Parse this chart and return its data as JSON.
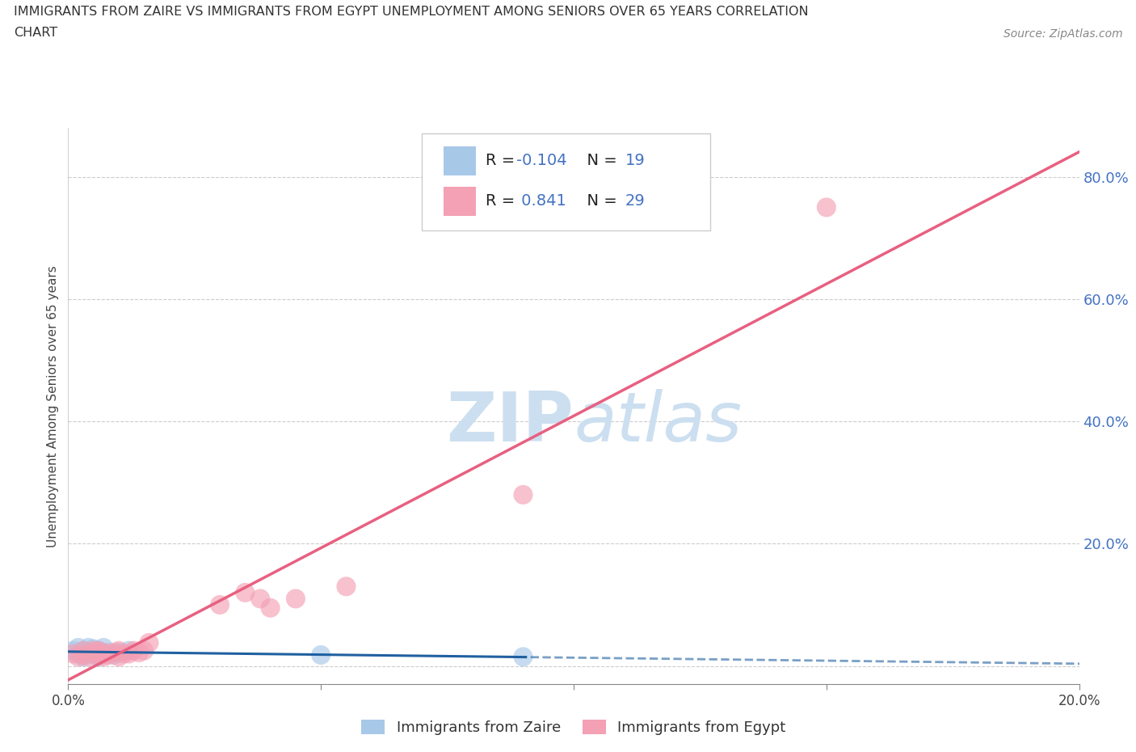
{
  "title_line1": "IMMIGRANTS FROM ZAIRE VS IMMIGRANTS FROM EGYPT UNEMPLOYMENT AMONG SENIORS OVER 65 YEARS CORRELATION",
  "title_line2": "CHART",
  "source_text": "Source: ZipAtlas.com",
  "ylabel": "Unemployment Among Seniors over 65 years",
  "xlim": [
    0.0,
    0.2
  ],
  "ylim": [
    -0.03,
    0.88
  ],
  "zaire_color": "#a8c8e8",
  "egypt_color": "#f4a0b5",
  "zaire_line_color": "#2060a0",
  "egypt_line_color": "#e86080",
  "background_color": "#ffffff",
  "watermark_color": "#ccdff0",
  "legend_r_zaire": "-0.104",
  "legend_n_zaire": "19",
  "legend_r_egypt": "0.841",
  "legend_n_egypt": "29",
  "zaire_x": [
    0.001,
    0.002,
    0.002,
    0.003,
    0.003,
    0.004,
    0.004,
    0.005,
    0.005,
    0.006,
    0.006,
    0.007,
    0.007,
    0.008,
    0.009,
    0.01,
    0.012,
    0.05,
    0.09
  ],
  "zaire_y": [
    0.025,
    0.02,
    0.03,
    0.015,
    0.025,
    0.022,
    0.03,
    0.018,
    0.028,
    0.015,
    0.025,
    0.02,
    0.03,
    0.022,
    0.018,
    0.022,
    0.025,
    0.018,
    0.015
  ],
  "egypt_x": [
    0.001,
    0.002,
    0.003,
    0.003,
    0.004,
    0.005,
    0.005,
    0.006,
    0.006,
    0.007,
    0.007,
    0.008,
    0.009,
    0.01,
    0.01,
    0.011,
    0.012,
    0.013,
    0.014,
    0.015,
    0.016,
    0.03,
    0.035,
    0.038,
    0.04,
    0.045,
    0.055,
    0.09,
    0.15
  ],
  "egypt_y": [
    0.02,
    0.015,
    0.018,
    0.025,
    0.015,
    0.02,
    0.025,
    0.018,
    0.025,
    0.015,
    0.022,
    0.018,
    0.022,
    0.015,
    0.025,
    0.02,
    0.02,
    0.025,
    0.022,
    0.025,
    0.038,
    0.1,
    0.12,
    0.11,
    0.095,
    0.11,
    0.13,
    0.28,
    0.75
  ]
}
